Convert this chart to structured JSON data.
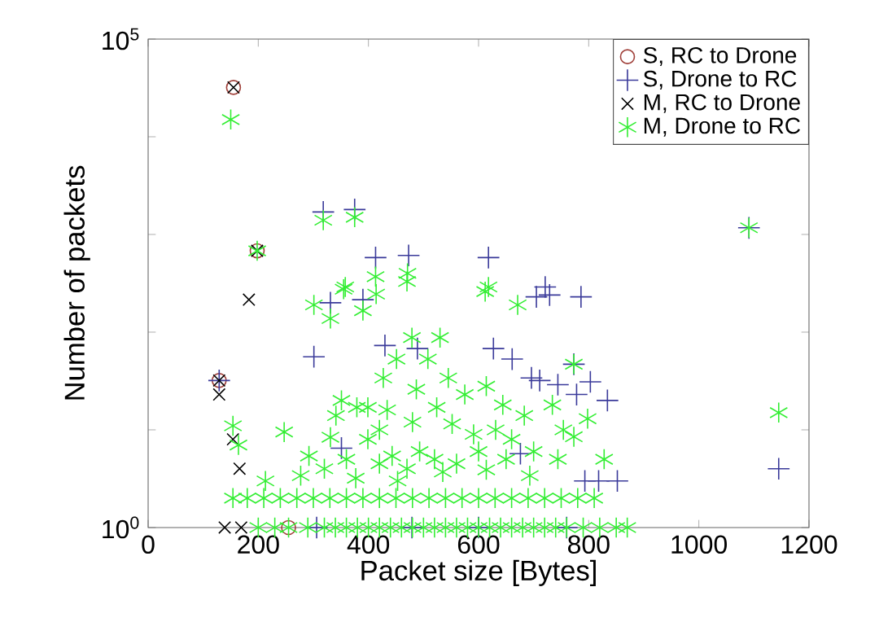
{
  "chart_data": {
    "type": "scatter",
    "xlabel": "Packet size [Bytes]",
    "ylabel": "Number of packets",
    "log": "y",
    "xlim": [
      0,
      1200
    ],
    "xticks": [
      0,
      200,
      400,
      600,
      800,
      1000,
      1200
    ],
    "ylim": [
      1,
      100000
    ],
    "yticks": [
      {
        "value": 1,
        "label": "10$^{0}$"
      },
      {
        "value": 10,
        "label": null
      },
      {
        "value": 100,
        "label": null
      },
      {
        "value": 1000,
        "label": null
      },
      {
        "value": 10000,
        "label": null
      },
      {
        "value": 100000,
        "label": "10$^{5}$"
      }
    ],
    "legend": "top right",
    "series": [
      {
        "name": "S, RC to Drone",
        "color": "#a0403a",
        "marker": "circle",
        "x": [
          155,
          198,
          129,
          255
        ],
        "values": [
          32000,
          680,
          32,
          1
        ]
      },
      {
        "name": "S, Drone to RC",
        "color": "#3a3a9a",
        "marker": "plus",
        "x": [
          318,
          375,
          413,
          473,
          618,
          721,
          331,
          390,
          705,
          729,
          786,
          301,
          430,
          489,
          627,
          661,
          696,
          773,
          711,
          744,
          803,
          778,
          834,
          351,
          676,
          793,
          818,
          852,
          1091,
          1145,
          129,
          306,
          479,
          600,
          760
        ],
        "values": [
          1700,
          1800,
          580,
          610,
          580,
          290,
          200,
          215,
          230,
          240,
          230,
          56,
          73,
          68,
          68,
          53,
          34,
          47,
          32,
          29,
          31,
          23,
          20,
          6.5,
          5.7,
          3,
          3,
          3,
          1170,
          4,
          32,
          1,
          1,
          1,
          1
        ]
      },
      {
        "name": "M, RC to Drone",
        "color": "#000000",
        "marker": "cross",
        "x": [
          155,
          198,
          129,
          183,
          129,
          154,
          166,
          139,
          169
        ],
        "values": [
          32000,
          680,
          32,
          215,
          23,
          8,
          4,
          1,
          1
        ]
      },
      {
        "name": "M, Drone to RC",
        "color": "#33ee33",
        "x": [
          150,
          198,
          255,
          318,
          375,
          413,
          471,
          618,
          358,
          1091,
          1145,
          301,
          331,
          355,
          390,
          414,
          470,
          612,
          671,
          479,
          530,
          451,
          508,
          427,
          487,
          545,
          575,
          614,
          644,
          683,
          524,
          351,
          341,
          379,
          399,
          434,
          247,
          292,
          331,
          399,
          443,
          493,
          552,
          591,
          631,
          213,
          277,
          377,
          453,
          535,
          614,
          693,
          154,
          164,
          734,
          798,
          754,
          773,
          828,
          744,
          773,
          320,
          360,
          420,
          470,
          520,
          560,
          650,
          700,
          420,
          480,
          600,
          660,
          154,
          180,
          210,
          240,
          270,
          300,
          330,
          360,
          390,
          420,
          450,
          480,
          510,
          540,
          570,
          600,
          630,
          660,
          690,
          720,
          750,
          780,
          810,
          200,
          230,
          290,
          320,
          340,
          360,
          380,
          400,
          420,
          440,
          460,
          480,
          500,
          520,
          540,
          560,
          580,
          600,
          620,
          640,
          660,
          680,
          700,
          720,
          740,
          760,
          790,
          820,
          850,
          870
        ],
        "values": [
          15000,
          680,
          1,
          1400,
          1500,
          370,
          400,
          290,
          290,
          1170,
          15,
          190,
          138,
          275,
          166,
          245,
          330,
          260,
          190,
          88,
          88,
          53,
          53,
          34,
          26,
          34,
          23,
          28,
          18,
          14,
          17,
          20,
          14,
          17,
          17,
          16,
          9.5,
          5.4,
          8.4,
          8,
          5.4,
          6,
          11.5,
          9,
          10,
          3,
          3.4,
          3.2,
          3,
          3.7,
          3.9,
          3.4,
          11,
          7,
          18,
          13,
          10,
          8.5,
          5,
          5,
          47,
          4,
          5,
          4.5,
          4,
          5,
          4.5,
          5,
          6,
          10,
          12,
          6,
          8,
          2,
          2,
          2,
          2,
          2,
          2,
          2,
          2,
          2,
          2,
          2,
          2,
          2,
          2,
          2,
          2,
          2,
          2,
          2,
          2,
          2,
          2,
          2,
          1,
          1,
          1,
          1,
          1,
          1,
          1,
          1,
          1,
          1,
          1,
          1,
          1,
          1,
          1,
          1,
          1,
          1,
          1,
          1,
          1,
          1,
          1,
          1,
          1,
          1,
          1,
          1,
          1,
          1
        ]
      }
    ]
  }
}
